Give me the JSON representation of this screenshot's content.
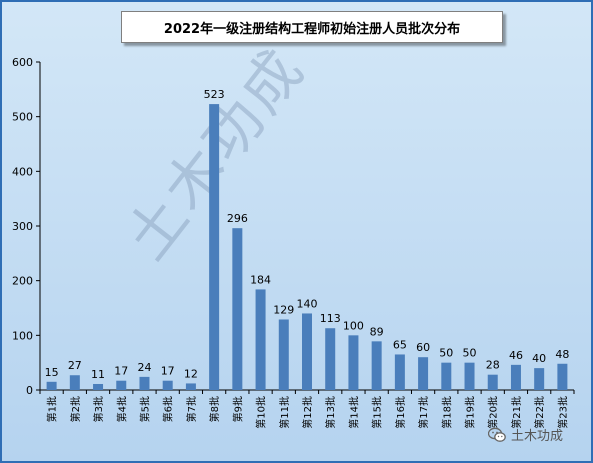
{
  "chart_data": {
    "type": "bar",
    "title": "2022年一级注册结构工程师初始注册人员批次分布",
    "categories": [
      "第1批",
      "第2批",
      "第3批",
      "第4批",
      "第5批",
      "第6批",
      "第7批",
      "第8批",
      "第9批",
      "第10批",
      "第11批",
      "第12批",
      "第13批",
      "第14批",
      "第15批",
      "第16批",
      "第17批",
      "第18批",
      "第19批",
      "第20批",
      "第21批",
      "第22批",
      "第23批"
    ],
    "values": [
      15,
      27,
      11,
      17,
      24,
      17,
      12,
      523,
      296,
      184,
      129,
      140,
      113,
      100,
      89,
      65,
      60,
      50,
      50,
      28,
      46,
      40,
      48
    ],
    "y_ticks": [
      0,
      100,
      200,
      300,
      400,
      500,
      600
    ],
    "ylim": [
      0,
      600
    ],
    "xlabel": "",
    "ylabel": "",
    "grid": false,
    "legend": "none",
    "bar_color": "#4a7ebb",
    "data_labels": true
  },
  "watermark": "土木功成",
  "footer": {
    "brand": "土木功成",
    "icon": "wechat-icon"
  },
  "colors": {
    "frame": "#2f6eb5",
    "background": "#c8def3",
    "bar": "#4a7ebb"
  }
}
